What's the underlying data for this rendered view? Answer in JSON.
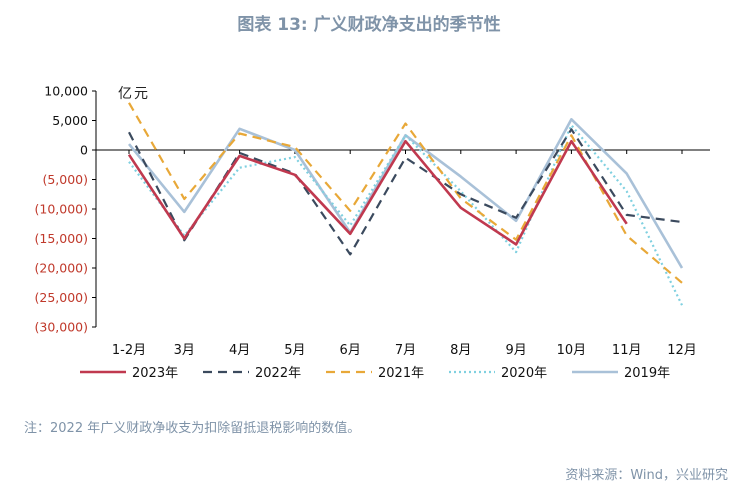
{
  "title": "图表 13: 广义财政净支出的季节性",
  "note": "注：2022 年广义财政净收支为扣除留抵退税影响的数值。",
  "source": "资料来源：Wind，兴业研究",
  "chart_data": {
    "type": "line",
    "ylabel": "亿元",
    "ylim": [
      -30000,
      10000
    ],
    "yticks": [
      10000,
      5000,
      0,
      -5000,
      -10000,
      -15000,
      -20000,
      -25000,
      -30000
    ],
    "yticklabels": [
      "10,000",
      "5,000",
      "0",
      "(5,000)",
      "(10,000)",
      "(15,000)",
      "(20,000)",
      "(25,000)",
      "(30,000)"
    ],
    "negative_tick_color": "#c0392b",
    "categories": [
      "1-2月",
      "3月",
      "4月",
      "5月",
      "6月",
      "7月",
      "8月",
      "9月",
      "10月",
      "11月",
      "12月"
    ],
    "legend_position": "bottom",
    "series": [
      {
        "name": "2023年",
        "color": "#c0394f",
        "dash": "solid",
        "width": 2.6,
        "values": [
          -800,
          -15000,
          -1000,
          -4200,
          -14200,
          1500,
          -9800,
          -16000,
          1500,
          -12500,
          null
        ]
      },
      {
        "name": "2022年",
        "color": "#3b4a5e",
        "dash": "dashed",
        "width": 2.2,
        "values": [
          3000,
          -15300,
          -500,
          -4000,
          -17700,
          -1300,
          -7500,
          -11500,
          3500,
          -11000,
          -12200
        ]
      },
      {
        "name": "2021年",
        "color": "#e8a838",
        "dash": "dashed",
        "width": 2.2,
        "values": [
          8000,
          -8300,
          2800,
          500,
          -10300,
          4500,
          -8200,
          -15200,
          2500,
          -14500,
          -22500
        ]
      },
      {
        "name": "2020年",
        "color": "#7fd0e0",
        "dash": "dotted",
        "width": 2.2,
        "values": [
          -2000,
          -14500,
          -3000,
          -1200,
          -12800,
          2500,
          -7000,
          -17300,
          4200,
          -7000,
          -26300
        ]
      },
      {
        "name": "2019年",
        "color": "#a9c1d8",
        "dash": "solid",
        "width": 2.6,
        "values": [
          1000,
          -10500,
          3600,
          0,
          -14000,
          2500,
          -4500,
          -12000,
          5200,
          -4000,
          -20000
        ]
      }
    ]
  }
}
